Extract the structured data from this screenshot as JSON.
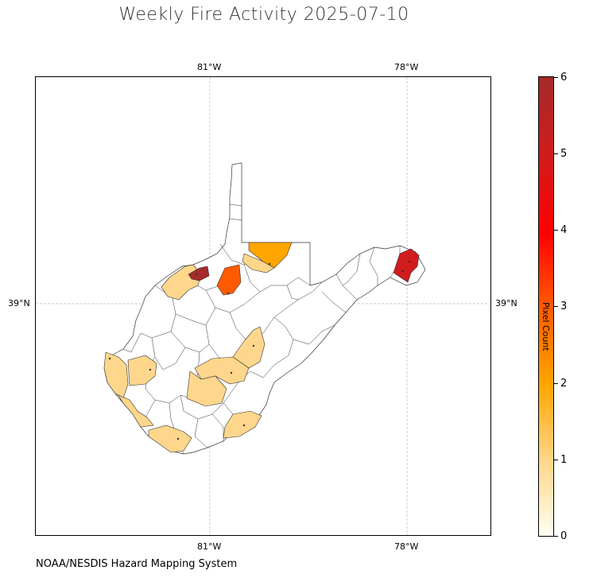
{
  "title": "Weekly Fire Activity 2025-07-10",
  "source_credit": "NOAA/NESDIS Hazard Mapping System",
  "longitude_labels": [
    "81°W",
    "78°W"
  ],
  "latitude_labels": [
    "39°N"
  ],
  "colorbar": {
    "title": "Pixel Count",
    "ticks": [
      "0",
      "1",
      "2",
      "3",
      "4",
      "5",
      "6"
    ],
    "min": 0,
    "max": 6,
    "colors": [
      "#fffff0",
      "#ffd78c",
      "#ffa500",
      "#ff5a00",
      "#ff0000",
      "#d01c1c",
      "#a52a2a"
    ]
  },
  "colors": {
    "level_1": "#ffd78c",
    "level_2": "#ffa500",
    "level_3": "#ff5a00",
    "level_5": "#d01c1c",
    "level_6": "#a52a2a",
    "border": "#333333",
    "grid": "#bbbbbb"
  }
}
